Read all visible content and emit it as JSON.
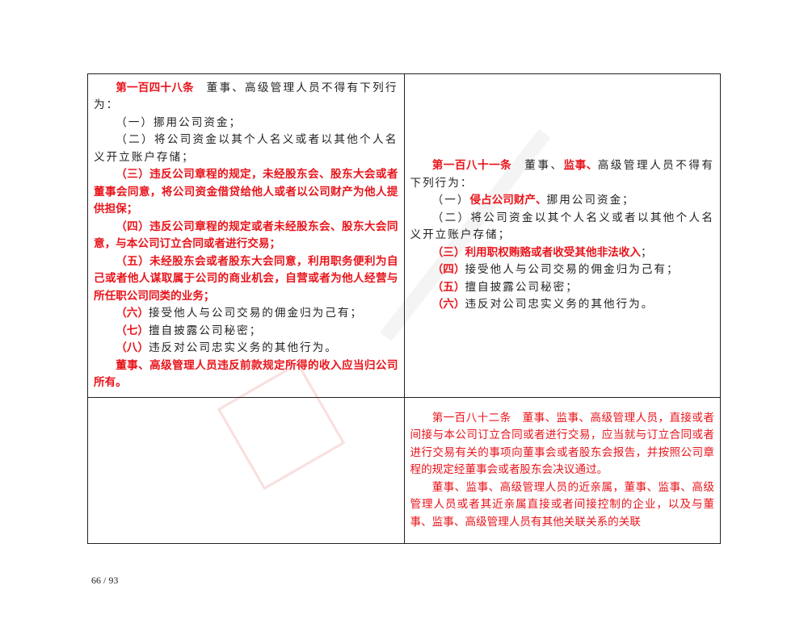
{
  "left_top": [
    [
      {
        "t": "第一百四十八条",
        "c": "red bold"
      },
      {
        "t": "　董事、高级管理人员不得有下列行为：",
        "c": "blk"
      }
    ],
    [
      {
        "t": "（一）挪用公司资金；",
        "c": "blk"
      }
    ],
    [
      {
        "t": "（二）将公司资金以其个人名义或者以其他个人名义开立账户存储；",
        "c": "blk"
      }
    ],
    [
      {
        "t": "（三）违反公司章程的规定，未经股东会、股东大会或者董事会同意，将公司资金借贷给他人或者以公司财产为他人提供担保；",
        "c": "red bold"
      }
    ],
    [
      {
        "t": "（四）违反公司章程的规定或者未经股东会、股东大会同意，与本公司订立合同或者进行交易；",
        "c": "red bold"
      }
    ],
    [
      {
        "t": "（五）未经股东会或者股东大会同意，利用职务便利为自己或者他人谋取属于公司的商业机会，自营或者为他人经营与所任职公司同类的业务；",
        "c": "red bold"
      }
    ],
    [
      {
        "t": "（六）",
        "c": "red bold"
      },
      {
        "t": "接受他人与公司交易的佣金归为己有；",
        "c": "blk"
      }
    ],
    [
      {
        "t": "（七）",
        "c": "red bold"
      },
      {
        "t": "擅自披露公司秘密；",
        "c": "blk"
      }
    ],
    [
      {
        "t": "（八）",
        "c": "red bold"
      },
      {
        "t": "违反对公司忠实义务的其他行为。",
        "c": "blk"
      }
    ],
    [
      {
        "t": "董事、高级管理人员违反前款规定所得的收入应当归公司所有。",
        "c": "red bold"
      }
    ]
  ],
  "right_top": [
    [
      {
        "t": "第一百八十一条",
        "c": "red bold"
      },
      {
        "t": "　董事、",
        "c": "blk"
      },
      {
        "t": "监事、",
        "c": "red bold"
      },
      {
        "t": "高级管理人员不得有下列行为：",
        "c": "blk"
      }
    ],
    [
      {
        "t": "（一）",
        "c": "blk"
      },
      {
        "t": "侵占公司财产、",
        "c": "red bold"
      },
      {
        "t": "挪用公司资金；",
        "c": "blk"
      }
    ],
    [
      {
        "t": "（二）将公司资金以其个人名义或者以其他个人名义开立账户存储；",
        "c": "blk"
      }
    ],
    [
      {
        "t": "（三）利用职权贿赂或者收受其他非法收入",
        "c": "red bold"
      },
      {
        "t": "；",
        "c": "blk"
      }
    ],
    [
      {
        "t": "（四）",
        "c": "red bold"
      },
      {
        "t": "接受他人与公司交易的佣金归为己有；",
        "c": "blk"
      }
    ],
    [
      {
        "t": "（五）",
        "c": "red bold"
      },
      {
        "t": "擅自披露公司秘密；",
        "c": "blk"
      }
    ],
    [
      {
        "t": "（六）",
        "c": "red bold"
      },
      {
        "t": "违反对公司忠实义务的其他行为。",
        "c": "blk"
      }
    ]
  ],
  "right_bottom": [
    [
      {
        "t": "第一百八十二条　董事、监事、高级管理人员，直接或者间接与本公司订立合同或者进行交易，应当就与订立合同或者进行交易有关的事项向董事会或者股东会报告，并按照公司章程的规定经董事会或者股东会决议通过。",
        "c": "red"
      }
    ],
    [
      {
        "t": "董事、监事、高级管理人员的近亲属，董事、监事、高级管理人员或者其近亲属直接或者间接控制的企业，以及与董事、监事、高级管理人员有其他关联关系的关联",
        "c": "red"
      }
    ]
  ],
  "page_number": "66 / 93",
  "watermark": "北大法宝 PKULAW.COM",
  "colors": {
    "red": "#e8141b",
    "text": "#222222"
  }
}
